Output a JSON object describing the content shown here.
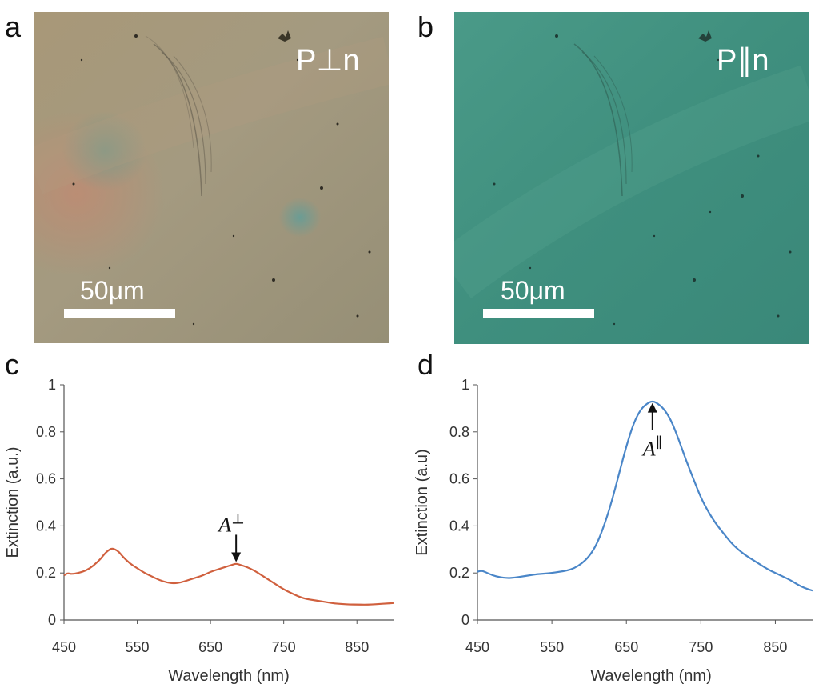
{
  "panels": {
    "a": {
      "letter": "a",
      "polarization_label": "P⊥n",
      "scale_label": "50μm",
      "base_color": "#9e9478"
    },
    "b": {
      "letter": "b",
      "polarization_label": "P∥n",
      "scale_label": "50μm",
      "base_color": "#3f8f80"
    },
    "c": {
      "letter": "c"
    },
    "d": {
      "letter": "d"
    }
  },
  "chart_data": [
    {
      "panel": "c",
      "type": "line",
      "xlabel": "Wavelength (nm)",
      "ylabel": "Extinction (a.u.)",
      "xlim": [
        450,
        900
      ],
      "ylim": [
        0,
        1
      ],
      "xticks": [
        450,
        550,
        650,
        750,
        850
      ],
      "yticks": [
        0,
        0.2,
        0.4,
        0.6,
        0.8,
        1
      ],
      "ytick_labels": [
        "0",
        "0.2",
        "0.4",
        "0.6",
        "0.8",
        "1"
      ],
      "color": "#d0603e",
      "annotation": {
        "base": "A",
        "sup": "⊥",
        "x": 685,
        "y": 0.24
      },
      "series": [
        {
          "name": "P⊥n",
          "x": [
            450,
            455,
            460,
            470,
            480,
            490,
            500,
            505,
            510,
            515,
            520,
            525,
            530,
            540,
            550,
            560,
            570,
            580,
            590,
            600,
            610,
            620,
            630,
            640,
            650,
            660,
            670,
            680,
            685,
            690,
            700,
            710,
            720,
            730,
            740,
            750,
            760,
            770,
            780,
            790,
            800,
            810,
            820,
            830,
            840,
            850,
            860,
            870,
            880,
            890,
            900
          ],
          "y": [
            0.19,
            0.2,
            0.195,
            0.2,
            0.21,
            0.23,
            0.26,
            0.28,
            0.295,
            0.305,
            0.3,
            0.29,
            0.27,
            0.24,
            0.22,
            0.2,
            0.185,
            0.17,
            0.16,
            0.155,
            0.16,
            0.17,
            0.18,
            0.19,
            0.205,
            0.215,
            0.225,
            0.235,
            0.24,
            0.235,
            0.225,
            0.21,
            0.19,
            0.17,
            0.15,
            0.13,
            0.115,
            0.1,
            0.09,
            0.085,
            0.08,
            0.075,
            0.07,
            0.068,
            0.066,
            0.066,
            0.065,
            0.066,
            0.068,
            0.07,
            0.072
          ]
        }
      ]
    },
    {
      "panel": "d",
      "type": "line",
      "xlabel": "Wavelength (nm)",
      "ylabel": "Extinction (a.u)",
      "xlim": [
        450,
        900
      ],
      "ylim": [
        0,
        1
      ],
      "xticks": [
        450,
        550,
        650,
        750,
        850
      ],
      "yticks": [
        0,
        0.2,
        0.4,
        0.6,
        0.8,
        1
      ],
      "ytick_labels": [
        "0",
        "0.2",
        "0.4",
        "0.6",
        "0.8",
        "1"
      ],
      "color": "#4a86c8",
      "annotation": {
        "base": "A",
        "sup": "∥",
        "x": 685,
        "y": 0.93
      },
      "series": [
        {
          "name": "P∥n",
          "x": [
            450,
            455,
            460,
            470,
            480,
            490,
            500,
            510,
            520,
            530,
            540,
            550,
            560,
            570,
            580,
            590,
            600,
            610,
            620,
            630,
            640,
            650,
            660,
            670,
            680,
            685,
            690,
            700,
            710,
            720,
            730,
            740,
            750,
            760,
            770,
            780,
            790,
            800,
            810,
            820,
            830,
            840,
            850,
            860,
            870,
            880,
            890,
            900
          ],
          "y": [
            0.205,
            0.21,
            0.205,
            0.19,
            0.182,
            0.178,
            0.18,
            0.185,
            0.19,
            0.195,
            0.197,
            0.2,
            0.205,
            0.21,
            0.22,
            0.24,
            0.27,
            0.32,
            0.4,
            0.5,
            0.62,
            0.74,
            0.84,
            0.9,
            0.925,
            0.93,
            0.925,
            0.9,
            0.85,
            0.77,
            0.68,
            0.6,
            0.52,
            0.46,
            0.41,
            0.37,
            0.33,
            0.3,
            0.275,
            0.255,
            0.235,
            0.215,
            0.2,
            0.185,
            0.17,
            0.15,
            0.135,
            0.125
          ]
        }
      ]
    }
  ]
}
